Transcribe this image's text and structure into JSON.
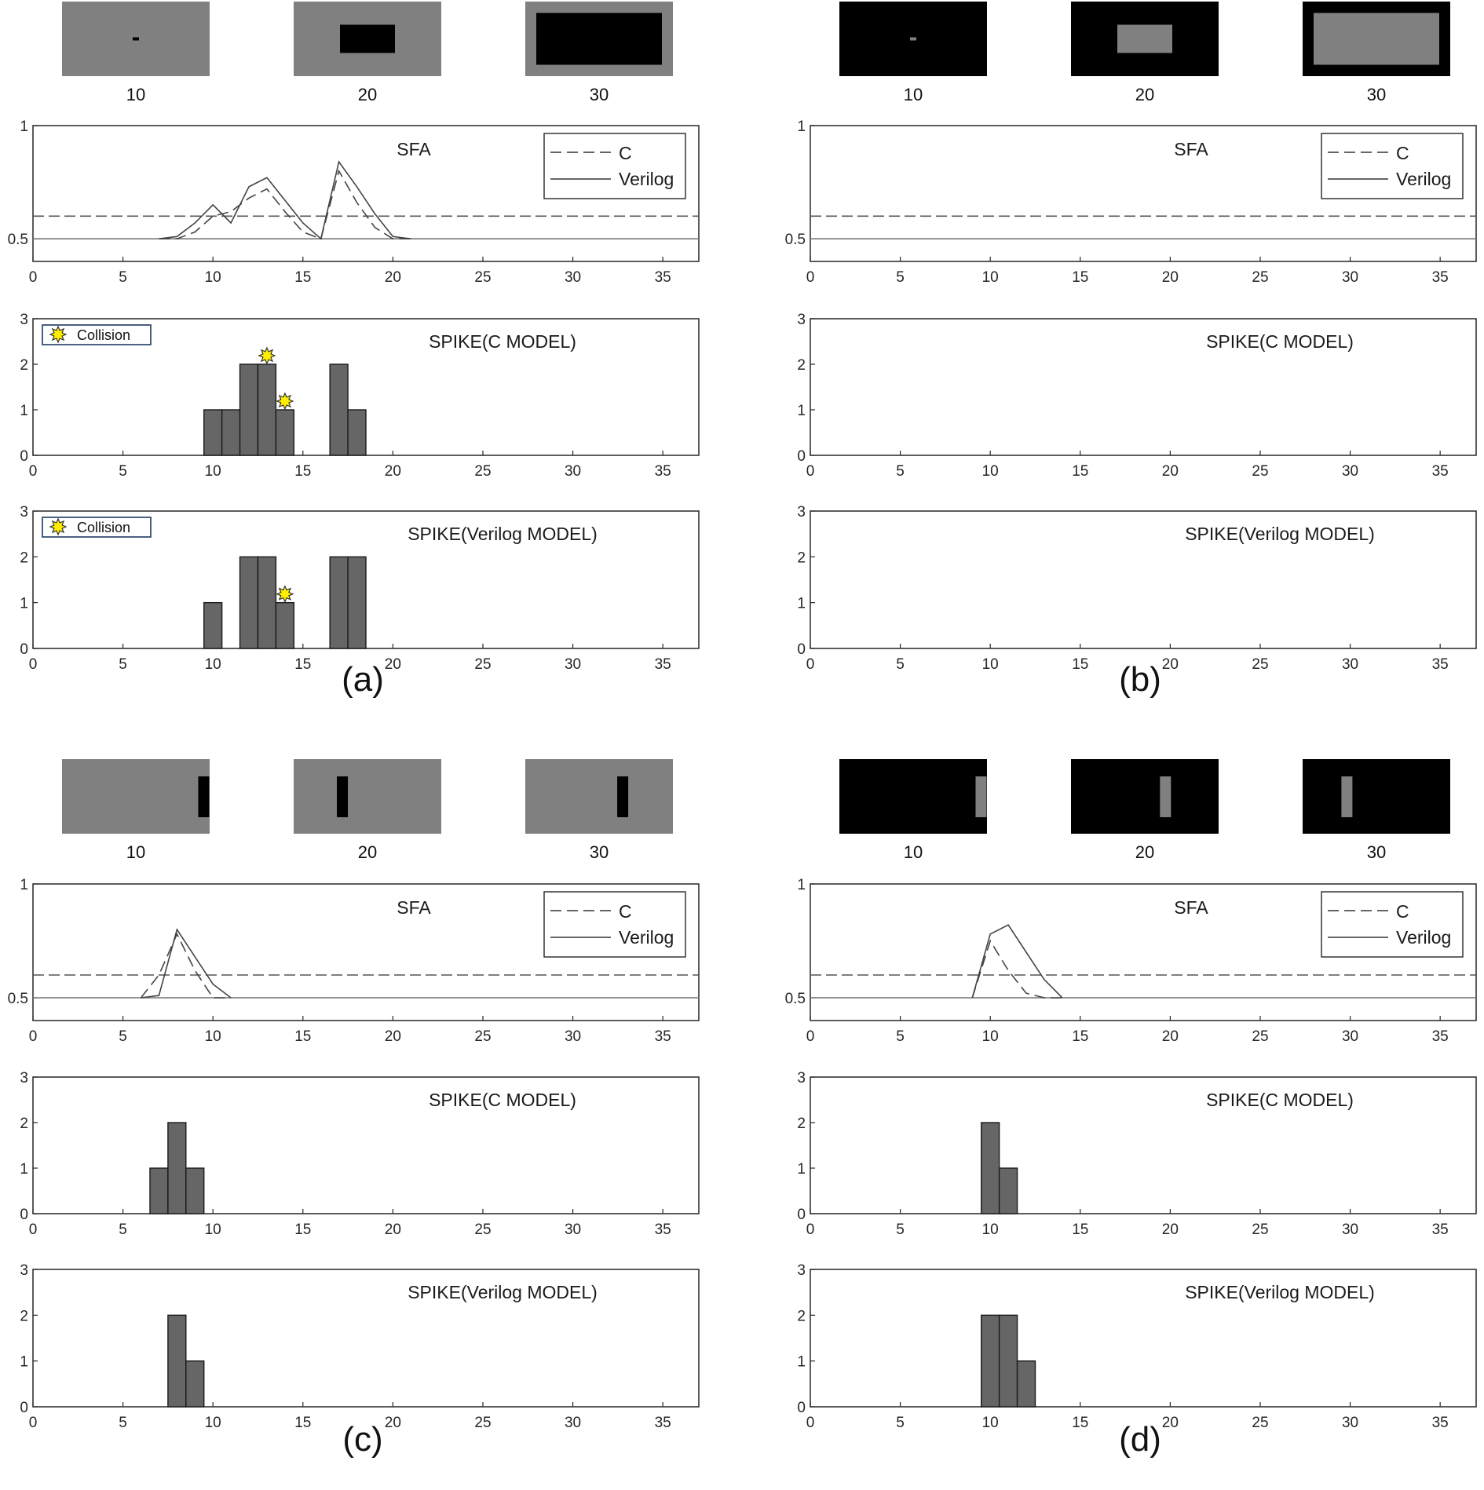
{
  "chart_data": [
    {
      "panel": "(a)",
      "type": "line",
      "title": "SFA",
      "frames": {
        "labels": [
          "10",
          "20",
          "30"
        ],
        "style": "gray background, black square"
      },
      "xlim": [
        0,
        37
      ],
      "ylim": [
        0.4,
        1
      ],
      "x_ticks": [
        "0",
        "5",
        "10",
        "15",
        "20",
        "25",
        "30",
        "35"
      ],
      "y_ticks": [
        "0.5",
        "1"
      ],
      "threshold": 0.6,
      "legend": {
        "entries": [
          "C",
          "Verilog"
        ],
        "position": "top-right"
      },
      "series": [
        {
          "name": "C",
          "style": "dashed",
          "x": [
            7,
            8,
            9,
            10,
            11,
            12,
            13,
            14,
            15,
            16,
            17,
            18,
            19,
            20,
            21
          ],
          "y": [
            0.5,
            0.5,
            0.53,
            0.6,
            0.62,
            0.68,
            0.72,
            0.62,
            0.53,
            0.5,
            0.8,
            0.66,
            0.55,
            0.5,
            0.5
          ]
        },
        {
          "name": "Verilog",
          "style": "solid",
          "x": [
            7,
            8,
            9,
            10,
            11,
            12,
            13,
            14,
            15,
            16,
            17,
            18,
            19,
            20,
            21
          ],
          "y": [
            0.5,
            0.51,
            0.57,
            0.65,
            0.57,
            0.73,
            0.77,
            0.67,
            0.57,
            0.5,
            0.84,
            0.73,
            0.61,
            0.51,
            0.5
          ]
        }
      ]
    },
    {
      "panel": "(a)",
      "type": "bar",
      "title": "SPIKE(C MODEL)",
      "xlim": [
        0,
        37
      ],
      "ylim": [
        0,
        3
      ],
      "x_ticks": [
        "0",
        "5",
        "10",
        "15",
        "20",
        "25",
        "30",
        "35"
      ],
      "y_ticks": [
        "0",
        "1",
        "2",
        "3"
      ],
      "x": [
        10,
        11,
        12,
        13,
        14,
        17,
        18
      ],
      "values": [
        1,
        1,
        2,
        2,
        1,
        2,
        1
      ],
      "collisions": [
        13,
        14
      ],
      "legend": {
        "entries": [
          "Collision"
        ],
        "position": "top-left"
      }
    },
    {
      "panel": "(a)",
      "type": "bar",
      "title": "SPIKE(Verilog MODEL)",
      "xlim": [
        0,
        37
      ],
      "ylim": [
        0,
        3
      ],
      "x_ticks": [
        "0",
        "5",
        "10",
        "15",
        "20",
        "25",
        "30",
        "35"
      ],
      "y_ticks": [
        "0",
        "1",
        "2",
        "3"
      ],
      "x": [
        10,
        12,
        13,
        14,
        17,
        18
      ],
      "values": [
        1,
        2,
        2,
        1,
        2,
        2
      ],
      "collisions": [
        14
      ],
      "legend": {
        "entries": [
          "Collision"
        ],
        "position": "top-left"
      }
    },
    {
      "panel": "(b)",
      "type": "line",
      "title": "SFA",
      "frames": {
        "labels": [
          "10",
          "20",
          "30"
        ],
        "style": "black background, gray square"
      },
      "xlim": [
        0,
        37
      ],
      "ylim": [
        0.4,
        1
      ],
      "x_ticks": [
        "0",
        "5",
        "10",
        "15",
        "20",
        "25",
        "30",
        "35"
      ],
      "y_ticks": [
        "0.5",
        "1"
      ],
      "threshold": 0.6,
      "legend": {
        "entries": [
          "C",
          "Verilog"
        ],
        "position": "top-right"
      },
      "series": [
        {
          "name": "C",
          "style": "dashed",
          "x": [],
          "y": []
        },
        {
          "name": "Verilog",
          "style": "solid",
          "x": [],
          "y": []
        }
      ]
    },
    {
      "panel": "(b)",
      "type": "bar",
      "title": "SPIKE(C MODEL)",
      "xlim": [
        0,
        37
      ],
      "ylim": [
        0,
        3
      ],
      "x_ticks": [
        "0",
        "5",
        "10",
        "15",
        "20",
        "25",
        "30",
        "35"
      ],
      "y_ticks": [
        "0",
        "1",
        "2",
        "3"
      ],
      "x": [],
      "values": [],
      "collisions": []
    },
    {
      "panel": "(b)",
      "type": "bar",
      "title": "SPIKE(Verilog MODEL)",
      "xlim": [
        0,
        37
      ],
      "ylim": [
        0,
        3
      ],
      "x_ticks": [
        "0",
        "5",
        "10",
        "15",
        "20",
        "25",
        "30",
        "35"
      ],
      "y_ticks": [
        "0",
        "1",
        "2",
        "3"
      ],
      "x": [],
      "values": [],
      "collisions": []
    },
    {
      "panel": "(c)",
      "type": "line",
      "title": "SFA",
      "frames": {
        "labels": [
          "10",
          "20",
          "30"
        ],
        "style": "gray background, black bar"
      },
      "xlim": [
        0,
        37
      ],
      "ylim": [
        0.4,
        1
      ],
      "x_ticks": [
        "0",
        "5",
        "10",
        "15",
        "20",
        "25",
        "30",
        "35"
      ],
      "y_ticks": [
        "0.5",
        "1"
      ],
      "threshold": 0.6,
      "legend": {
        "entries": [
          "C",
          "Verilog"
        ],
        "position": "top-right"
      },
      "series": [
        {
          "name": "C",
          "style": "dashed",
          "x": [
            6,
            7,
            8,
            9,
            10,
            11
          ],
          "y": [
            0.5,
            0.6,
            0.78,
            0.62,
            0.5,
            0.5
          ]
        },
        {
          "name": "Verilog",
          "style": "solid",
          "x": [
            6,
            7,
            8,
            9,
            10,
            11
          ],
          "y": [
            0.5,
            0.51,
            0.8,
            0.68,
            0.56,
            0.5
          ]
        }
      ]
    },
    {
      "panel": "(c)",
      "type": "bar",
      "title": "SPIKE(C MODEL)",
      "xlim": [
        0,
        37
      ],
      "ylim": [
        0,
        3
      ],
      "x_ticks": [
        "0",
        "5",
        "10",
        "15",
        "20",
        "25",
        "30",
        "35"
      ],
      "y_ticks": [
        "0",
        "1",
        "2",
        "3"
      ],
      "x": [
        7,
        8,
        9
      ],
      "values": [
        1,
        2,
        1
      ],
      "collisions": []
    },
    {
      "panel": "(c)",
      "type": "bar",
      "title": "SPIKE(Verilog MODEL)",
      "xlim": [
        0,
        37
      ],
      "ylim": [
        0,
        3
      ],
      "x_ticks": [
        "0",
        "5",
        "10",
        "15",
        "20",
        "25",
        "30",
        "35"
      ],
      "y_ticks": [
        "0",
        "1",
        "2",
        "3"
      ],
      "x": [
        8,
        9
      ],
      "values": [
        2,
        1
      ],
      "collisions": []
    },
    {
      "panel": "(d)",
      "type": "line",
      "title": "SFA",
      "frames": {
        "labels": [
          "10",
          "20",
          "30"
        ],
        "style": "black background, gray bar"
      },
      "xlim": [
        0,
        37
      ],
      "ylim": [
        0.4,
        1
      ],
      "x_ticks": [
        "0",
        "5",
        "10",
        "15",
        "20",
        "25",
        "30",
        "35"
      ],
      "y_ticks": [
        "0.5",
        "1"
      ],
      "threshold": 0.6,
      "legend": {
        "entries": [
          "C",
          "Verilog"
        ],
        "position": "top-right"
      },
      "series": [
        {
          "name": "C",
          "style": "dashed",
          "x": [
            9,
            10,
            11,
            12,
            13,
            14
          ],
          "y": [
            0.5,
            0.75,
            0.62,
            0.52,
            0.5,
            0.5
          ]
        },
        {
          "name": "Verilog",
          "style": "solid",
          "x": [
            9,
            10,
            11,
            12,
            13,
            14
          ],
          "y": [
            0.5,
            0.78,
            0.82,
            0.7,
            0.58,
            0.5
          ]
        }
      ]
    },
    {
      "panel": "(d)",
      "type": "bar",
      "title": "SPIKE(C MODEL)",
      "xlim": [
        0,
        37
      ],
      "ylim": [
        0,
        3
      ],
      "x_ticks": [
        "0",
        "5",
        "10",
        "15",
        "20",
        "25",
        "30",
        "35"
      ],
      "y_ticks": [
        "0",
        "1",
        "2",
        "3"
      ],
      "x": [
        10,
        11
      ],
      "values": [
        2,
        1
      ],
      "collisions": []
    },
    {
      "panel": "(d)",
      "type": "bar",
      "title": "SPIKE(Verilog MODEL)",
      "xlim": [
        0,
        37
      ],
      "ylim": [
        0,
        3
      ],
      "x_ticks": [
        "0",
        "5",
        "10",
        "15",
        "20",
        "25",
        "30",
        "35"
      ],
      "y_ticks": [
        "0",
        "1",
        "2",
        "3"
      ],
      "x": [
        10,
        11,
        12
      ],
      "values": [
        2,
        2,
        1
      ],
      "collisions": []
    }
  ],
  "panels": [
    {
      "label": "(a)"
    },
    {
      "label": "(b)"
    },
    {
      "label": "(c)"
    },
    {
      "label": "(d)"
    }
  ],
  "colors": {
    "frame_gray": "#808080",
    "frame_black": "#000000",
    "bar_fill": "#666666",
    "bar_stroke": "#1a1a1a",
    "line": "#444444",
    "threshold": "#555555",
    "baseline": "#777777",
    "star_fill": "#ffee00",
    "legend_box": "#1f3864"
  }
}
